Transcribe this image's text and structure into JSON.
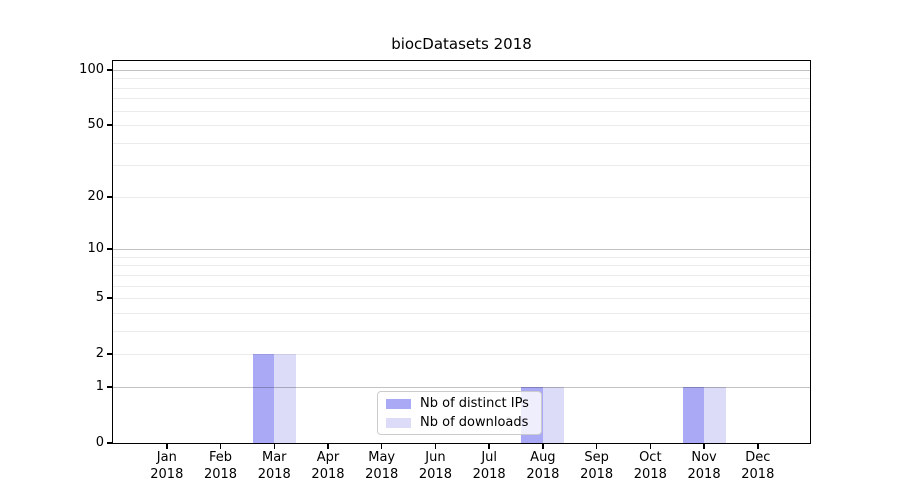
{
  "chart_data": {
    "type": "bar",
    "title": "biocDatasets 2018",
    "months": [
      "Jan",
      "Feb",
      "Mar",
      "Apr",
      "May",
      "Jun",
      "Jul",
      "Aug",
      "Sep",
      "Oct",
      "Nov",
      "Dec"
    ],
    "year": "2018",
    "series": [
      {
        "name": "Nb of distinct IPs",
        "color": "#a9a9f5",
        "values": [
          0,
          0,
          2,
          0,
          0,
          0,
          0,
          1,
          0,
          0,
          1,
          0
        ]
      },
      {
        "name": "Nb of downloads",
        "color": "#dcdcf8",
        "values": [
          0,
          0,
          2,
          0,
          0,
          0,
          0,
          1,
          0,
          0,
          1,
          0
        ]
      }
    ],
    "y_axis": {
      "scale": "log1p",
      "tick_values": [
        0,
        1,
        2,
        5,
        10,
        20,
        50,
        100
      ],
      "major_gridlines": [
        1,
        10,
        100
      ],
      "minor_gridlines": [
        2,
        3,
        4,
        5,
        6,
        7,
        8,
        9,
        20,
        30,
        40,
        50,
        60,
        70,
        80,
        90
      ],
      "ylim": [
        0,
        110
      ]
    },
    "legend": {
      "position": "lower center",
      "frame_alpha": 0.8
    },
    "colors": {
      "background": "#ffffff",
      "spine": "#000000",
      "major_grid": "rgba(0,0,0,0.24)",
      "minor_grid": "rgba(0,0,0,0.08)",
      "bar_distinct_ips": "#a9a9f5",
      "bar_downloads": "#dcdcf8"
    },
    "grid": true
  }
}
